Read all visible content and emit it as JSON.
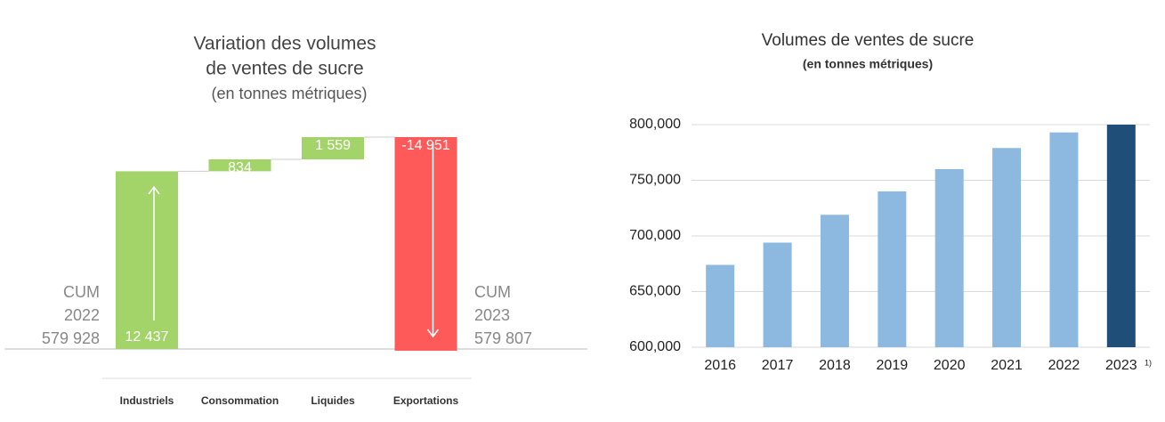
{
  "chart_data": [
    {
      "type": "waterfall",
      "title": [
        "Variation des volumes",
        "de ventes de sucre"
      ],
      "subtitle": "(en tonnes métriques)",
      "categories": [
        "Industriels",
        "Consommation",
        "Liquides",
        "Exportations"
      ],
      "values": [
        12437,
        834,
        1559,
        -14951
      ],
      "value_labels": [
        "12 437",
        "834",
        "1 559",
        "-14 951"
      ],
      "colors": {
        "increase": "#a3d46a",
        "decrease": "#ff5a5a"
      },
      "start_label": [
        "CUM",
        "2022",
        "579 928"
      ],
      "end_label": [
        "CUM",
        "2023",
        "579 807"
      ]
    },
    {
      "type": "bar",
      "title": "Volumes de ventes de sucre",
      "subtitle": "(en tonnes métriques)",
      "categories": [
        "2016",
        "2017",
        "2018",
        "2019",
        "2020",
        "2021",
        "2022",
        "2023"
      ],
      "footnote_marker": "1)",
      "values": [
        674000,
        694000,
        719000,
        740000,
        760000,
        779000,
        793000,
        800000
      ],
      "colors": [
        "#8db9e0",
        "#8db9e0",
        "#8db9e0",
        "#8db9e0",
        "#8db9e0",
        "#8db9e0",
        "#8db9e0",
        "#1f4e79"
      ],
      "ylim": [
        600000,
        800000
      ],
      "yticks": [
        {
          "value": 600000,
          "label": "600,000"
        },
        {
          "value": 650000,
          "label": "650,000"
        },
        {
          "value": 700000,
          "label": "700,000"
        },
        {
          "value": 750000,
          "label": "750,000"
        },
        {
          "value": 800000,
          "label": "800,000"
        }
      ],
      "grid": true
    }
  ]
}
